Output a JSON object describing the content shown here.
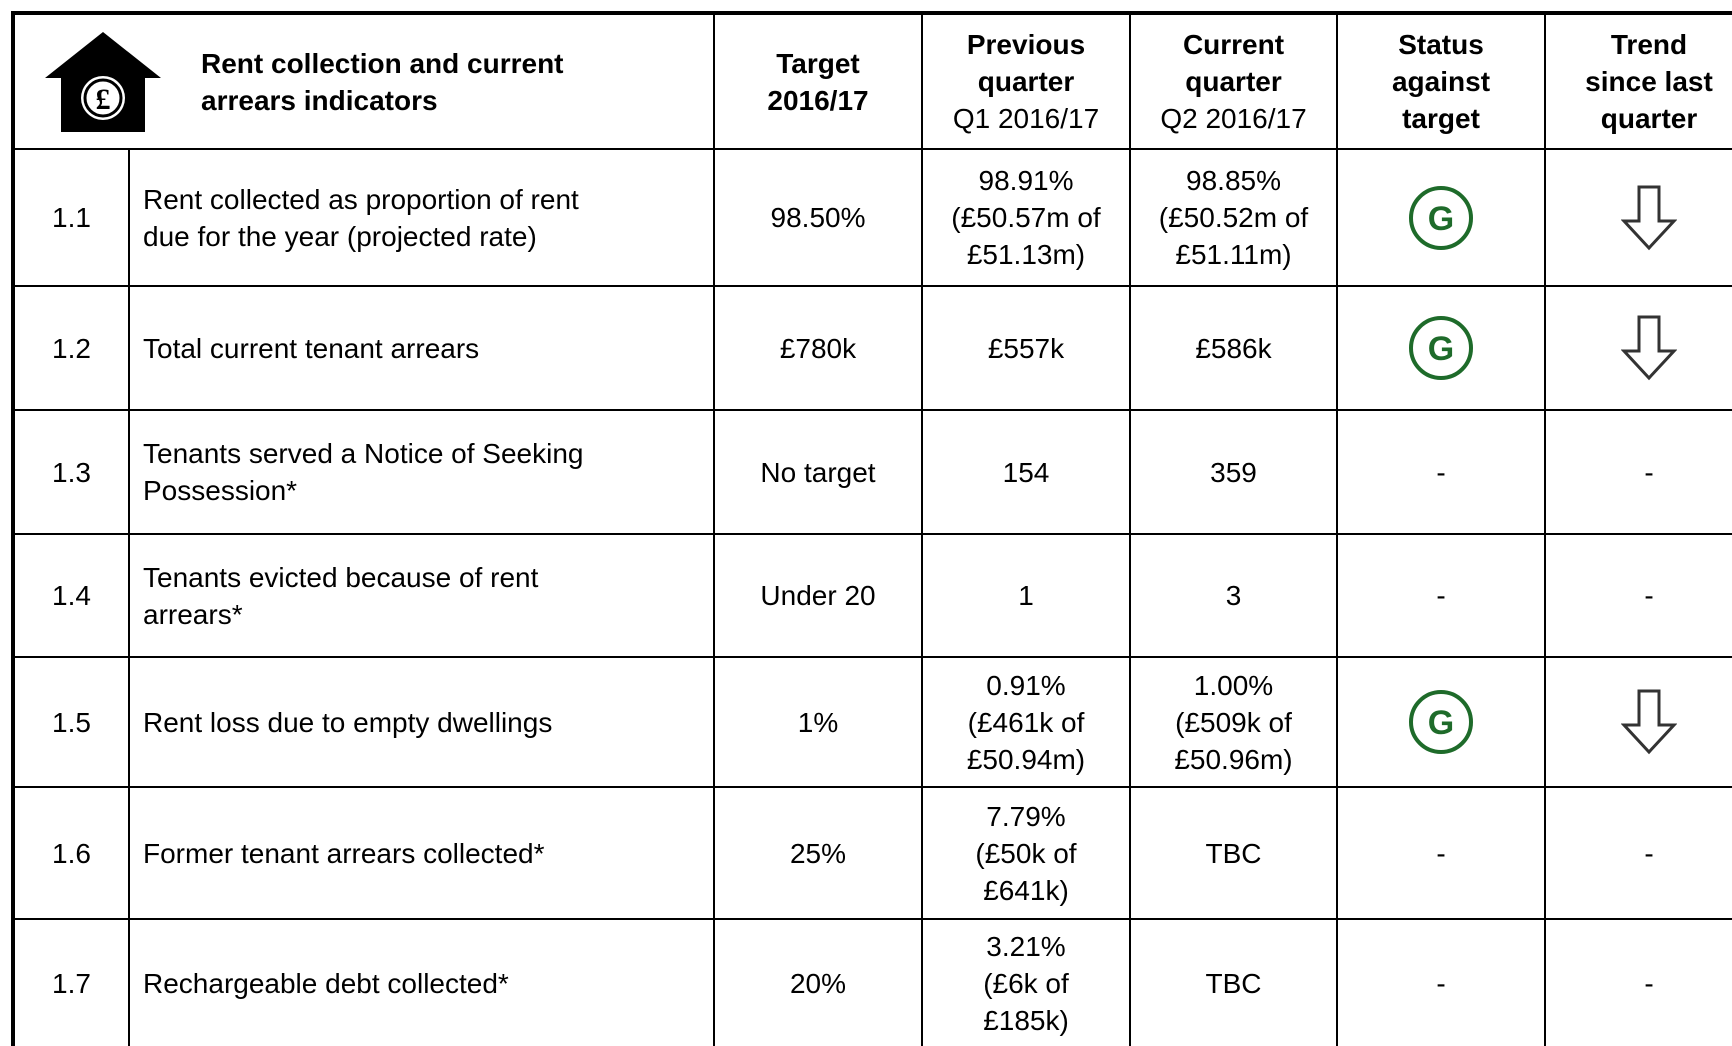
{
  "header": {
    "icon_label": "£",
    "title": [
      "Rent collection and current",
      "arrears indicators"
    ],
    "columns": [
      {
        "title": [
          "Target",
          "2016/17"
        ]
      },
      {
        "title": [
          "Previous",
          "quarter"
        ],
        "period": "Q1 2016/17"
      },
      {
        "title": [
          "Current",
          "quarter"
        ],
        "period": "Q2 2016/17"
      },
      {
        "title": [
          "Status",
          "against",
          "target"
        ]
      },
      {
        "title": [
          "Trend",
          "since last",
          "quarter"
        ]
      }
    ]
  },
  "table": {
    "rows": [
      {
        "id": "1.1",
        "indicator": [
          "Rent collected as proportion of rent",
          "due for the year (projected rate)"
        ],
        "target": [
          "98.50%"
        ],
        "previous": [
          "98.91%",
          "(£50.57m of",
          "£51.13m)"
        ],
        "current": [
          "98.85%",
          "(£50.52m of",
          "£51.11m)"
        ],
        "status": "G",
        "trend": null
      },
      {
        "id": "1.2",
        "indicator": [
          "Total current tenant arrears"
        ],
        "target": [
          "£780k"
        ],
        "previous": [
          "£557k"
        ],
        "current": [
          "£586k"
        ],
        "status": "G",
        "trend": null
      },
      {
        "id": "1.3",
        "indicator": [
          "Tenants served a Notice of Seeking",
          "Possession*"
        ],
        "target": [
          "No target"
        ],
        "previous": [
          "154"
        ],
        "current": [
          "359"
        ],
        "status": "-",
        "trend": "-"
      },
      {
        "id": "1.4",
        "indicator": [
          "Tenants evicted because of rent",
          "arrears*"
        ],
        "target": [
          "Under 20"
        ],
        "previous": [
          "1"
        ],
        "current": [
          "3"
        ],
        "status": "-",
        "trend": "-"
      },
      {
        "id": "1.5",
        "indicator": [
          "Rent loss due to empty dwellings"
        ],
        "target": [
          "1%"
        ],
        "previous": [
          "0.91%",
          "(£461k of",
          "£50.94m)"
        ],
        "current": [
          "1.00%",
          "(£509k of",
          "£50.96m)"
        ],
        "status": "G",
        "trend": null
      },
      {
        "id": "1.6",
        "indicator": [
          "Former tenant arrears collected*"
        ],
        "target": [
          "25%"
        ],
        "previous": [
          "7.79%",
          "(£50k of",
          "£641k)"
        ],
        "current": [
          "TBC"
        ],
        "status": "-",
        "trend": "-"
      },
      {
        "id": "1.7",
        "indicator": [
          "Rechargeable debt collected*"
        ],
        "target": [
          "20%"
        ],
        "previous": [
          "3.21%",
          "(£6k of",
          "£185k)"
        ],
        "current": [
          "TBC"
        ],
        "status": "-",
        "trend": "-"
      }
    ]
  }
}
